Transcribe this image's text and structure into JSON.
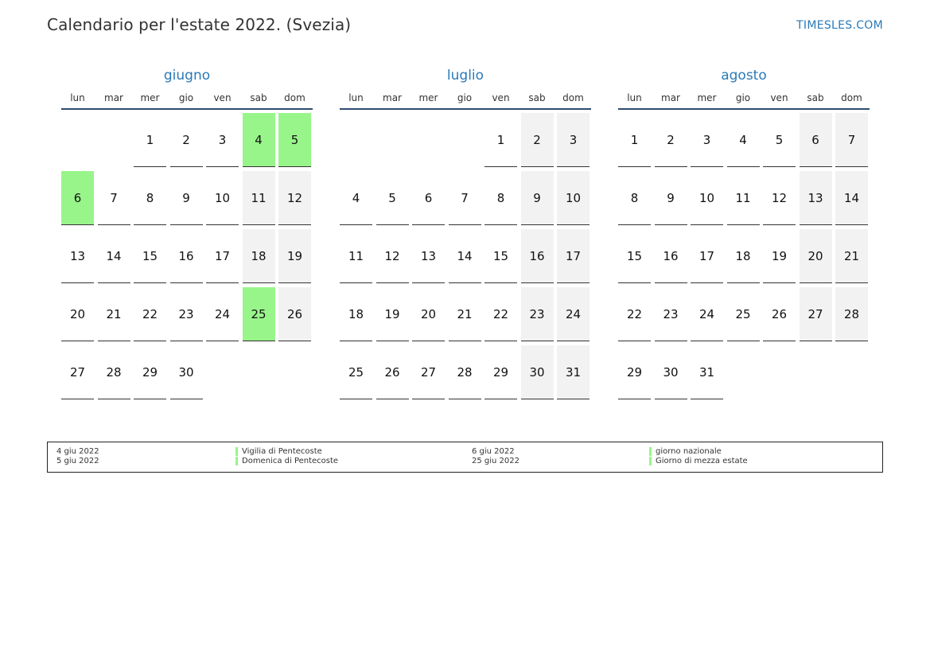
{
  "title": "Calendario per l'estate 2022. (Svezia)",
  "brand": "TIMESLES.COM",
  "colors": {
    "accent": "#2a7ab8",
    "holiday": "#98f58a",
    "weekend": "#f2f2f2"
  },
  "weekday_headers": [
    "lun",
    "mar",
    "mer",
    "gio",
    "ven",
    "sab",
    "dom"
  ],
  "months": [
    {
      "name": "giugno",
      "weeks": [
        [
          "",
          "",
          "1",
          "2",
          "3",
          "4",
          "5"
        ],
        [
          "6",
          "7",
          "8",
          "9",
          "10",
          "11",
          "12"
        ],
        [
          "13",
          "14",
          "15",
          "16",
          "17",
          "18",
          "19"
        ],
        [
          "20",
          "21",
          "22",
          "23",
          "24",
          "25",
          "26"
        ],
        [
          "27",
          "28",
          "29",
          "30",
          "",
          "",
          ""
        ]
      ],
      "holidays": [
        "4",
        "5",
        "6",
        "25"
      ]
    },
    {
      "name": "luglio",
      "weeks": [
        [
          "",
          "",
          "",
          "",
          "1",
          "2",
          "3"
        ],
        [
          "4",
          "5",
          "6",
          "7",
          "8",
          "9",
          "10"
        ],
        [
          "11",
          "12",
          "13",
          "14",
          "15",
          "16",
          "17"
        ],
        [
          "18",
          "19",
          "20",
          "21",
          "22",
          "23",
          "24"
        ],
        [
          "25",
          "26",
          "27",
          "28",
          "29",
          "30",
          "31"
        ]
      ],
      "holidays": []
    },
    {
      "name": "agosto",
      "weeks": [
        [
          "1",
          "2",
          "3",
          "4",
          "5",
          "6",
          "7"
        ],
        [
          "8",
          "9",
          "10",
          "11",
          "12",
          "13",
          "14"
        ],
        [
          "15",
          "16",
          "17",
          "18",
          "19",
          "20",
          "21"
        ],
        [
          "22",
          "23",
          "24",
          "25",
          "26",
          "27",
          "28"
        ],
        [
          "29",
          "30",
          "31",
          "",
          "",
          "",
          ""
        ]
      ],
      "holidays": []
    }
  ],
  "legend": {
    "left": [
      {
        "date": "4 giu 2022",
        "name": "Vigilia di Pentecoste"
      },
      {
        "date": "5 giu 2022",
        "name": "Domenica di Pentecoste"
      }
    ],
    "right": [
      {
        "date": "6 giu 2022",
        "name": "giorno nazionale"
      },
      {
        "date": "25 giu 2022",
        "name": "Giorno di mezza estate"
      }
    ]
  }
}
